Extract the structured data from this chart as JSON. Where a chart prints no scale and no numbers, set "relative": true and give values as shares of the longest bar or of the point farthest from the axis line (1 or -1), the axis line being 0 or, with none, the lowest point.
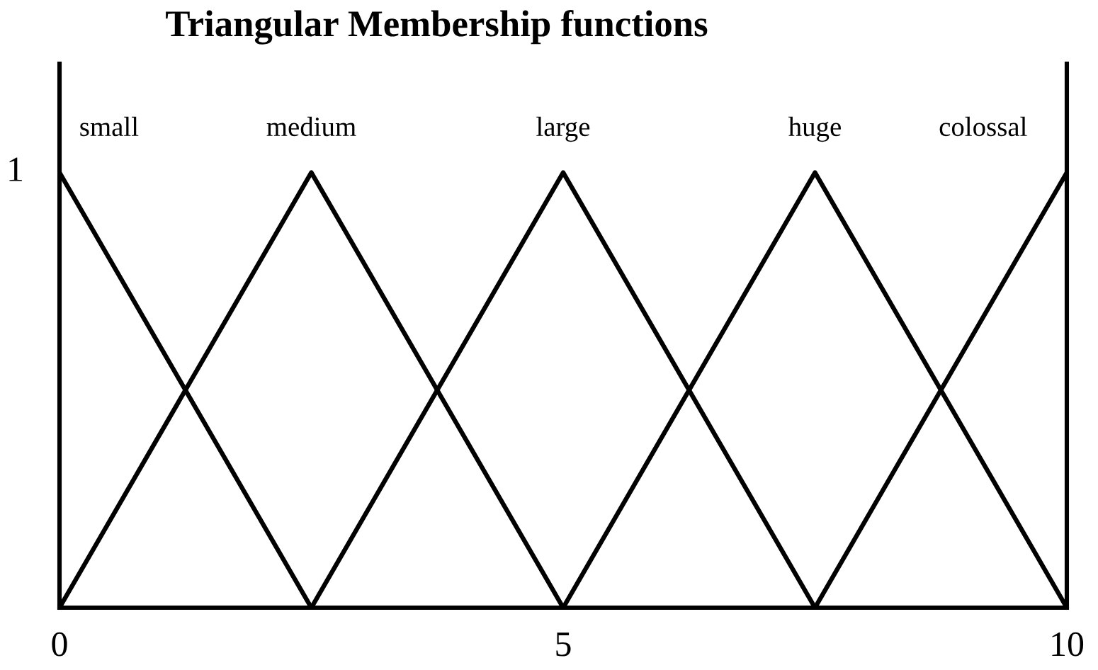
{
  "chart_data": {
    "type": "line",
    "title": "Triangular Membership functions",
    "series": [
      {
        "name": "small",
        "color": "#000000",
        "x": [
          0,
          2.5
        ],
        "values": [
          1,
          0
        ]
      },
      {
        "name": "medium",
        "color": "#000000",
        "x": [
          0,
          2.5,
          5
        ],
        "values": [
          0,
          1,
          0
        ]
      },
      {
        "name": "large",
        "color": "#000000",
        "x": [
          2.5,
          5,
          7.5
        ],
        "values": [
          0,
          1,
          0
        ]
      },
      {
        "name": "huge",
        "color": "#000000",
        "x": [
          5,
          7.5,
          10
        ],
        "values": [
          0,
          1,
          0
        ]
      },
      {
        "name": "colossal",
        "color": "#000000",
        "x": [
          7.5,
          10
        ],
        "values": [
          0,
          1
        ]
      }
    ],
    "relative": true,
    "annotations": [
      "1"
    ],
    "xlim": [
      0,
      10
    ],
    "xticks": [
      0,
      5,
      10
    ],
    "line_style": "solid"
  }
}
